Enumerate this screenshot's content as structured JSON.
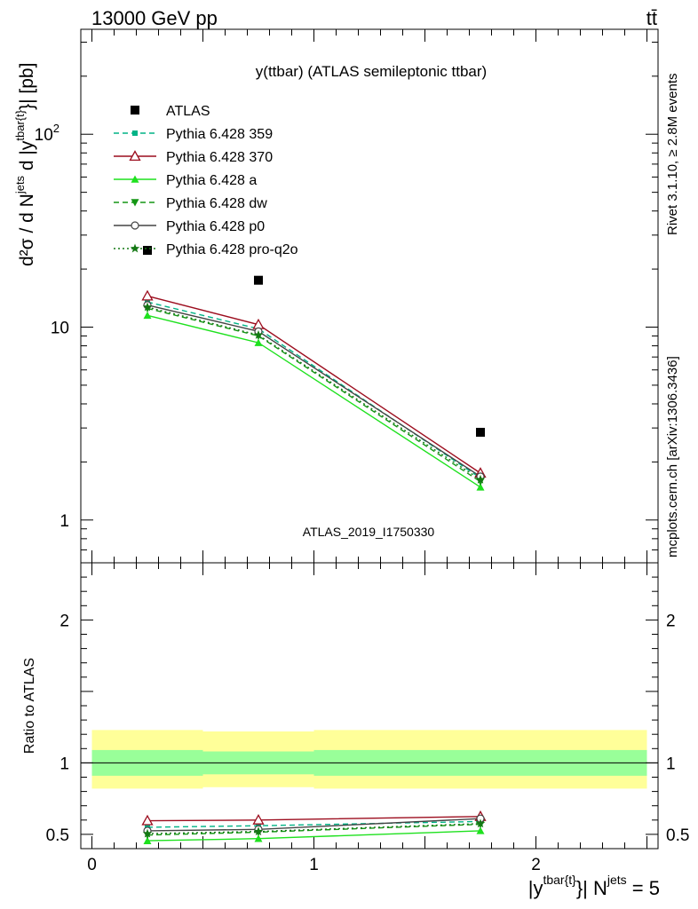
{
  "header": {
    "left_text": "13000 GeV pp",
    "right_text": "tt̄"
  },
  "side_labels": {
    "rivet": "Rivet 3.1.10, ≥ 2.8M events",
    "mcplots": "mcplots.cern.ch [arXiv:1306.3436]"
  },
  "chart_data": [
    {
      "type": "line",
      "panel": "main",
      "title": "y(ttbar) (ATLAS semileptonic ttbar)",
      "ylabel_parts": {
        "d2sigma": "d²σ / d N",
        "sup_jets": "jets",
        "mid": " d |y",
        "sup_tbar": "tbar{t}",
        "end": "}| [pb]"
      },
      "watermark": "ATLAS_2019_I1750330",
      "yscale": "log",
      "ylim": [
        0.6,
        350
      ],
      "xlim": [
        -0.05,
        2.55
      ],
      "ytick_labels": [
        {
          "value": 1,
          "label": "1"
        },
        {
          "value": 10,
          "label": "10"
        },
        {
          "value": 100,
          "label": "10",
          "sup": "2"
        }
      ],
      "legend_position": "top-left",
      "x": [
        0.25,
        0.75,
        1.75
      ],
      "series": [
        {
          "name": "ATLAS",
          "color": "#000000",
          "marker": "square",
          "line": "none",
          "values": [
            25.0,
            17.5,
            2.85
          ]
        },
        {
          "name": "Pythia 6.428 359",
          "color": "#00b386",
          "marker": "small-square",
          "line": "dashed",
          "values": [
            13.5,
            9.8,
            1.65
          ]
        },
        {
          "name": "Pythia 6.428 370",
          "color": "#9c0d1e",
          "marker": "open-triangle",
          "line": "solid",
          "values": [
            14.5,
            10.3,
            1.75
          ]
        },
        {
          "name": "Pythia 6.428 a",
          "color": "#1ee11e",
          "marker": "filled-triangle",
          "line": "solid",
          "values": [
            11.5,
            8.3,
            1.48
          ]
        },
        {
          "name": "Pythia 6.428 dw",
          "color": "#149614",
          "marker": "filled-triangle-down",
          "line": "dashed",
          "values": [
            12.5,
            9.0,
            1.58
          ]
        },
        {
          "name": "Pythia 6.428 p0",
          "color": "#444444",
          "marker": "open-circle",
          "line": "solid",
          "values": [
            13.0,
            9.5,
            1.68
          ]
        },
        {
          "name": "Pythia 6.428 pro-q2o",
          "color": "#147814",
          "marker": "star",
          "line": "dotted",
          "values": [
            12.7,
            9.1,
            1.62
          ]
        }
      ]
    },
    {
      "type": "line",
      "panel": "ratio",
      "ylabel": "Ratio to ATLAS",
      "yscale": "linear",
      "ylim": [
        0.4,
        2.4
      ],
      "xlim": [
        -0.05,
        2.55
      ],
      "ytick_labels": [
        {
          "value": 0.5,
          "label": "0.5"
        },
        {
          "value": 1,
          "label": "1"
        },
        {
          "value": 2,
          "label": "2"
        }
      ],
      "xtick_labels": [
        {
          "value": 0,
          "label": "0"
        },
        {
          "value": 1,
          "label": "1"
        },
        {
          "value": 2,
          "label": "2"
        }
      ],
      "xlabel_parts": {
        "start": "|y",
        "sup_tbar": "tbar{t}",
        "mid": "}| N",
        "sup_jets": "jets",
        "end": " = 5"
      },
      "bands": [
        {
          "name": "stat+syst",
          "color": "#ffff99",
          "segments": [
            {
              "x": [
                0.0,
                0.5
              ],
              "y": [
                0.82,
                1.23
              ]
            },
            {
              "x": [
                0.5,
                1.0
              ],
              "y": [
                0.83,
                1.22
              ]
            },
            {
              "x": [
                1.0,
                2.5
              ],
              "y": [
                0.82,
                1.23
              ]
            }
          ]
        },
        {
          "name": "stat",
          "color": "#99ff99",
          "segments": [
            {
              "x": [
                0.0,
                0.5
              ],
              "y": [
                0.91,
                1.09
              ]
            },
            {
              "x": [
                0.5,
                1.0
              ],
              "y": [
                0.92,
                1.08
              ]
            },
            {
              "x": [
                1.0,
                2.5
              ],
              "y": [
                0.91,
                1.09
              ]
            }
          ]
        }
      ],
      "reference_line": 1.0,
      "x": [
        0.25,
        0.75,
        1.75
      ],
      "series": [
        {
          "name": "Pythia 6.428 359",
          "values": [
            0.55,
            0.56,
            0.59
          ]
        },
        {
          "name": "Pythia 6.428 370",
          "values": [
            0.595,
            0.6,
            0.625
          ]
        },
        {
          "name": "Pythia 6.428 a",
          "values": [
            0.455,
            0.47,
            0.525
          ]
        },
        {
          "name": "Pythia 6.428 dw",
          "values": [
            0.495,
            0.515,
            0.57
          ]
        },
        {
          "name": "Pythia 6.428 p0",
          "values": [
            0.525,
            0.535,
            0.61
          ]
        },
        {
          "name": "Pythia 6.428 pro-q2o",
          "values": [
            0.505,
            0.52,
            0.575
          ]
        }
      ]
    }
  ]
}
